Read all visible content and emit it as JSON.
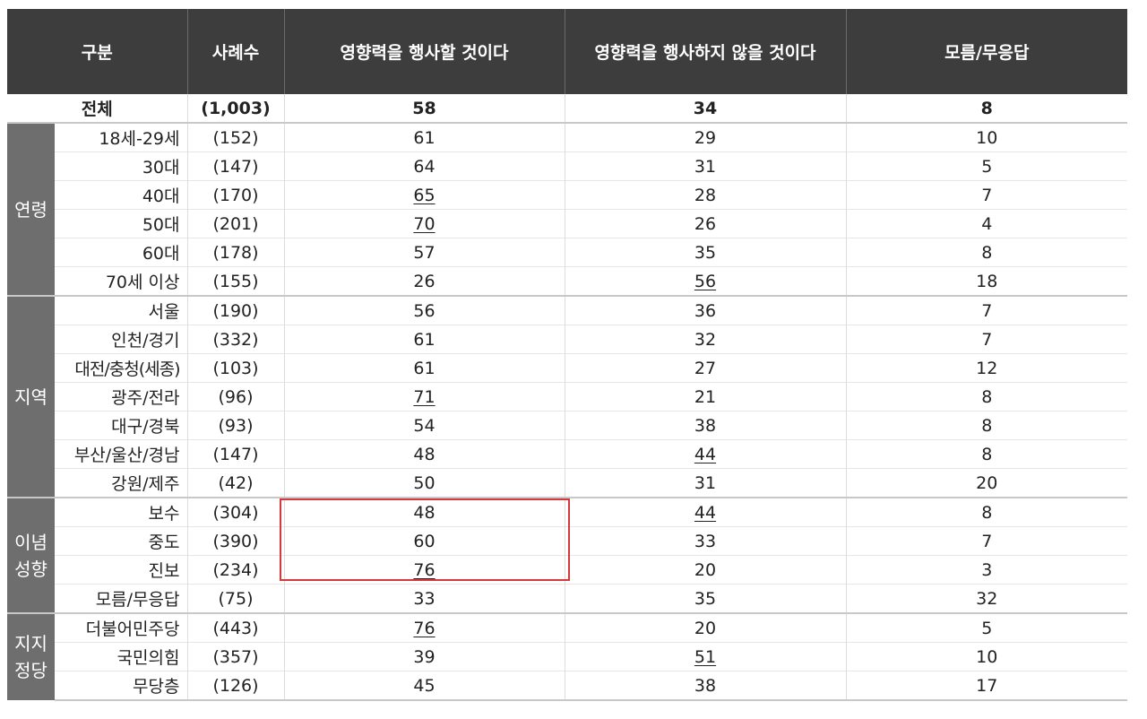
{
  "header": {
    "group": "구분",
    "count": "사례수",
    "col_a": "영향력을 행사할 것이다",
    "col_b": "영향력을 행사하지 않을 것이다",
    "col_c": "모름/무응답"
  },
  "total": {
    "label": "전체",
    "n": "(1,003)",
    "a": "58",
    "b": "34",
    "c": "8"
  },
  "groups": [
    {
      "label": "연령",
      "rows": [
        {
          "label": "18세-29세",
          "n": "(152)",
          "a": "61",
          "b": "29",
          "c": "10"
        },
        {
          "label": "30대",
          "n": "(147)",
          "a": "64",
          "b": "31",
          "c": "5"
        },
        {
          "label": "40대",
          "n": "(170)",
          "a": "65",
          "b": "28",
          "c": "7"
        },
        {
          "label": "50대",
          "n": "(201)",
          "a": "70",
          "b": "26",
          "c": "4"
        },
        {
          "label": "60대",
          "n": "(178)",
          "a": "57",
          "b": "35",
          "c": "8"
        },
        {
          "label": "70세 이상",
          "n": "(155)",
          "a": "26",
          "b": "56",
          "c": "18"
        }
      ]
    },
    {
      "label": "지역",
      "rows": [
        {
          "label": "서울",
          "n": "(190)",
          "a": "56",
          "b": "36",
          "c": "7"
        },
        {
          "label": "인천/경기",
          "n": "(332)",
          "a": "61",
          "b": "32",
          "c": "7"
        },
        {
          "label": "대전/충청(세종)",
          "n": "(103)",
          "a": "61",
          "b": "27",
          "c": "12"
        },
        {
          "label": "광주/전라",
          "n": "(96)",
          "a": "71",
          "b": "21",
          "c": "8"
        },
        {
          "label": "대구/경북",
          "n": "(93)",
          "a": "54",
          "b": "38",
          "c": "8"
        },
        {
          "label": "부산/울산/경남",
          "n": "(147)",
          "a": "48",
          "b": "44",
          "c": "8"
        },
        {
          "label": "강원/제주",
          "n": "(42)",
          "a": "50",
          "b": "31",
          "c": "20"
        }
      ]
    },
    {
      "label": "이념\n성향",
      "rows": [
        {
          "label": "보수",
          "n": "(304)",
          "a": "48",
          "b": "44",
          "c": "8"
        },
        {
          "label": "중도",
          "n": "(390)",
          "a": "60",
          "b": "33",
          "c": "7"
        },
        {
          "label": "진보",
          "n": "(234)",
          "a": "76",
          "b": "20",
          "c": "3"
        },
        {
          "label": "모름/무응답",
          "n": "(75)",
          "a": "33",
          "b": "35",
          "c": "32"
        }
      ]
    },
    {
      "label": "지지\n정당",
      "rows": [
        {
          "label": "더불어민주당",
          "n": "(443)",
          "a": "76",
          "b": "20",
          "c": "5"
        },
        {
          "label": "국민의힘",
          "n": "(357)",
          "a": "39",
          "b": "51",
          "c": "10"
        },
        {
          "label": "무당층",
          "n": "(126)",
          "a": "45",
          "b": "38",
          "c": "17"
        }
      ]
    }
  ]
}
